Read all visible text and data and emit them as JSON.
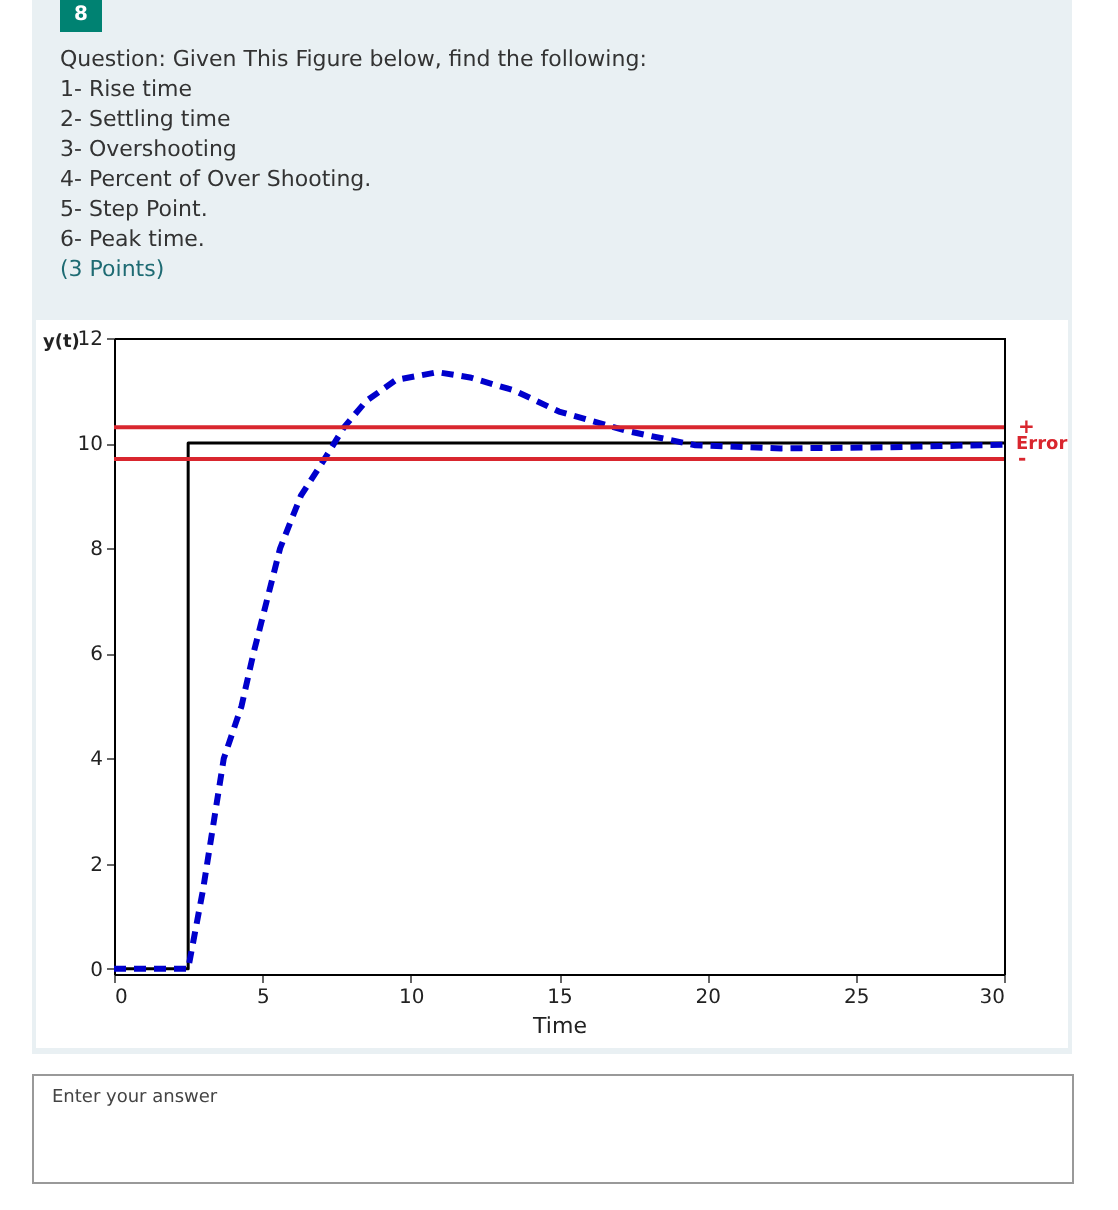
{
  "chart_data": {
    "type": "line",
    "title": "Question: Given This Figure below, find the following:",
    "annotations": [
      "8",
      "1- Rise time",
      "2- Settling time",
      "3- Overshooting",
      "4- Percent of Over Shooting.",
      "5- Step Point.",
      "6- Peak time.",
      "(3 Points)",
      {
        "text": "Error",
        "x": 30,
        "y": 10
      },
      "Enter your answer"
    ],
    "xlabel": "Time",
    "ylabel": "y(t)",
    "xlim": [
      0,
      30
    ],
    "xticks": [
      0,
      5,
      10,
      15,
      20,
      25,
      30
    ],
    "ylim": [
      -0.1,
      12
    ],
    "yticks": [
      0,
      2,
      4,
      6,
      8,
      10,
      12
    ],
    "series": [
      {
        "color": "#000000",
        "line_style": "solid",
        "x": [
          0,
          2.5,
          2.5,
          30
        ],
        "values": [
          0,
          0,
          10,
          10
        ]
      },
      {
        "color": "#0000cc",
        "line_style": "dashed",
        "x": [
          0,
          2.5,
          3,
          3.7,
          4.3,
          4.7,
          5.6,
          6.3,
          7.1,
          7.75,
          8.5,
          9.5,
          10.9,
          12,
          13.5,
          15,
          17.3,
          19.6,
          22.5,
          26,
          30
        ],
        "values": [
          0,
          0,
          1.5,
          4,
          5,
          6,
          8,
          9,
          9.7,
          10.3,
          10.8,
          11.2,
          11.35,
          11.25,
          11,
          10.6,
          10.23,
          9.96,
          9.9,
          9.92,
          9.97
        ]
      }
    ],
    "ref_lines": [
      {
        "axis": "y",
        "value": 10.3,
        "label": "+",
        "color": "#d9262e"
      },
      {
        "axis": "y",
        "value": 9.7,
        "label": "-",
        "color": "#d9262e"
      }
    ],
    "grid": false
  }
}
